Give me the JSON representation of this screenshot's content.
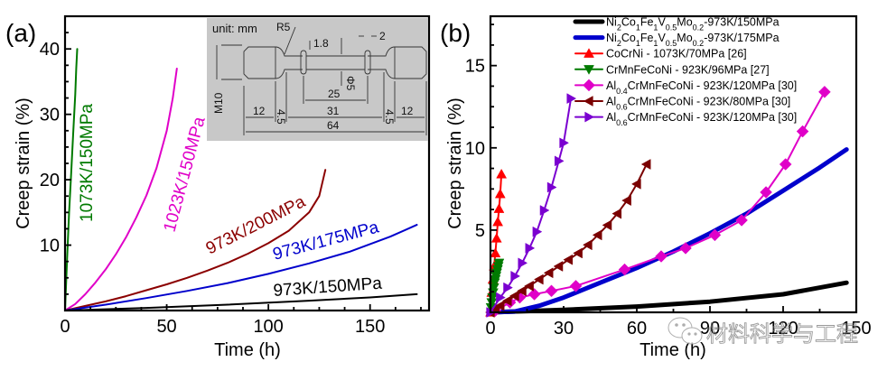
{
  "chart_data": [
    {
      "panel": "(a)",
      "type": "line",
      "title": "",
      "xlabel": "Time (h)",
      "ylabel": "Creep strain (%)",
      "xlim": [
        0,
        179
      ],
      "ylim": [
        0,
        45
      ],
      "xticks": [
        0,
        50,
        100,
        150
      ],
      "yticks": [
        10,
        20,
        30,
        40
      ],
      "grid": false,
      "series": [
        {
          "name": "1073K/150MPa",
          "color": "#007a00",
          "x": [
            0,
            1,
            2,
            3,
            4,
            5,
            5.5,
            6
          ],
          "y": [
            0,
            8,
            15,
            21,
            27,
            33,
            37,
            40
          ]
        },
        {
          "name": "1023K/150MPa",
          "color": "#e000c8",
          "x": [
            0,
            5,
            10,
            15,
            20,
            25,
            30,
            35,
            40,
            45,
            50,
            53,
            55
          ],
          "y": [
            0,
            1.0,
            2.5,
            4.3,
            6.3,
            8.6,
            11.2,
            14.2,
            17.6,
            21.8,
            27.5,
            32.5,
            37
          ]
        },
        {
          "name": "973K/200MPa",
          "color": "#8b0000",
          "x": [
            0,
            10,
            20,
            30,
            40,
            50,
            60,
            70,
            80,
            90,
            100,
            110,
            120,
            125,
            128
          ],
          "y": [
            0,
            0.7,
            1.4,
            2.2,
            3.1,
            4.0,
            5.0,
            6.1,
            7.3,
            8.7,
            10.3,
            12.2,
            15.0,
            17.5,
            21.5
          ]
        },
        {
          "name": "973K/175MPa",
          "color": "#0000cc",
          "x": [
            0,
            20,
            40,
            60,
            80,
            100,
            120,
            140,
            160,
            173
          ],
          "y": [
            0,
            0.9,
            1.9,
            3.0,
            4.2,
            5.6,
            7.2,
            9.0,
            11.3,
            13.1
          ]
        },
        {
          "name": "973K/150MPa",
          "color": "#000000",
          "x": [
            0,
            40,
            80,
            120,
            150,
            173
          ],
          "y": [
            0,
            0.4,
            0.9,
            1.5,
            2.0,
            2.5
          ]
        }
      ],
      "curve_labels": [
        {
          "text": "1073K/150MPa",
          "color": "#007a00"
        },
        {
          "text": "1023K/150MPa",
          "color": "#e000c8"
        },
        {
          "text": "973K/200MPa",
          "color": "#8b0000"
        },
        {
          "text": "973K/175MPa",
          "color": "#0000cc"
        },
        {
          "text": "973K/150MPa",
          "color": "#000000"
        }
      ],
      "inset": {
        "unit_label": "unit: mm",
        "dimensions": {
          "radius": "R5",
          "collar_thickness": "1.8",
          "groove_width": "2",
          "gauge_diameter": "Φ5",
          "thread": "M10",
          "gauge_length": "25",
          "grip_length_left": "12",
          "fillet_left": "4.5",
          "middle_length": "31",
          "fillet_right": "4.5",
          "grip_length_right": "12",
          "total_length": "64"
        }
      }
    },
    {
      "panel": "(b)",
      "type": "line",
      "title": "",
      "xlabel": "Time (h)",
      "ylabel": "Creep strain (%)",
      "xlim": [
        0,
        150
      ],
      "ylim": [
        0,
        18
      ],
      "xticks": [
        0,
        30,
        60,
        90,
        120,
        150
      ],
      "yticks": [
        5,
        10,
        15
      ],
      "grid": false,
      "legend_position": "top-right",
      "series": [
        {
          "name": "Ni2Co1Fe1V0.5Mo0.2-973K/150MPa",
          "legend_parts": [
            [
              "Ni",
              ""
            ],
            [
              "2",
              "sub"
            ],
            [
              "Co",
              ""
            ],
            [
              "1",
              "sub"
            ],
            [
              "Fe",
              ""
            ],
            [
              "1",
              "sub"
            ],
            [
              "V",
              ""
            ],
            [
              "0.5",
              "sub"
            ],
            [
              "Mo",
              ""
            ],
            [
              "0.2",
              "sub"
            ],
            [
              "-973K/150MPa",
              ""
            ]
          ],
          "color": "#000000",
          "marker": "none",
          "x": [
            0,
            30,
            60,
            90,
            120,
            146
          ],
          "y": [
            0,
            0.15,
            0.35,
            0.65,
            1.1,
            1.8
          ]
        },
        {
          "name": "Ni2Co1Fe1V0.5Mo0.2-973K/175MPa",
          "legend_parts": [
            [
              "Ni",
              ""
            ],
            [
              "2",
              "sub"
            ],
            [
              "Co",
              ""
            ],
            [
              "1",
              "sub"
            ],
            [
              "Fe",
              ""
            ],
            [
              "1",
              "sub"
            ],
            [
              "V",
              ""
            ],
            [
              "0.5",
              "sub"
            ],
            [
              "Mo",
              ""
            ],
            [
              "0.2",
              "sub"
            ],
            [
              "-973K/175MPa",
              ""
            ]
          ],
          "color": "#0000cc",
          "marker": "none",
          "x": [
            0,
            10,
            20,
            30,
            45,
            60,
            75,
            90,
            105,
            120,
            135,
            146
          ],
          "y": [
            0,
            0.05,
            0.4,
            0.9,
            1.8,
            2.7,
            3.7,
            4.8,
            6.0,
            7.4,
            8.8,
            9.9
          ]
        },
        {
          "name": "CoCrNi - 1073K/70MPa [26]",
          "legend_parts": [
            [
              "CoCrNi - 1073K/70MPa [26]",
              ""
            ]
          ],
          "color": "#ff0000",
          "marker": "triangle-up",
          "x": [
            0,
            0.5,
            1,
            1.5,
            2,
            2.5,
            3,
            3.5,
            4,
            4.5
          ],
          "y": [
            0,
            1.2,
            2.0,
            2.8,
            3.6,
            4.5,
            5.5,
            6.3,
            7.2,
            8.4
          ]
        },
        {
          "name": "CrMnFeCoNi - 923K/96MPa [27]",
          "legend_parts": [
            [
              "CrMnFeCoNi - 923K/96MPa [27]",
              ""
            ]
          ],
          "color": "#007a00",
          "marker": "triangle-down",
          "x": [
            0.2,
            0.5,
            0.8,
            1.1,
            1.4,
            1.7,
            2.0,
            2.3,
            2.6,
            2.9,
            3.2,
            3.5
          ],
          "y": [
            0.3,
            0.6,
            0.9,
            1.2,
            1.5,
            1.8,
            2.0,
            2.2,
            2.4,
            2.6,
            2.8,
            3.0
          ]
        },
        {
          "name": "Al0.4CrMnFeCoNi - 923K/120MPa [30]",
          "legend_parts": [
            [
              "Al",
              ""
            ],
            [
              "0.4",
              "sub"
            ],
            [
              "CrMnFeCoNi - 923K/120MPa [30]",
              ""
            ]
          ],
          "color": "#e000c8",
          "marker": "diamond",
          "x": [
            2,
            8,
            12,
            18,
            25,
            35,
            55,
            70,
            80,
            92,
            103,
            113,
            121,
            128,
            137
          ],
          "y": [
            0.1,
            0.6,
            0.9,
            1.1,
            1.3,
            1.6,
            2.6,
            3.4,
            3.9,
            4.7,
            5.6,
            7.3,
            9.0,
            11.0,
            13.4
          ]
        },
        {
          "name": "Al0.6CrMnFeCoNi - 923K/80MPa [30]",
          "legend_parts": [
            [
              "Al",
              ""
            ],
            [
              "0.6",
              "sub"
            ],
            [
              "CrMnFeCoNi - 923K/80MPa [30]",
              ""
            ]
          ],
          "color": "#7a0000",
          "marker": "triangle-left",
          "x": [
            0,
            2,
            4,
            7,
            10,
            13,
            16,
            20,
            24,
            28,
            32,
            36,
            40,
            44,
            48,
            52,
            56,
            60,
            64
          ],
          "y": [
            0,
            0.2,
            0.4,
            0.7,
            1.0,
            1.3,
            1.6,
            2.0,
            2.4,
            2.8,
            3.2,
            3.6,
            4.1,
            4.7,
            5.3,
            6.0,
            6.8,
            7.8,
            9.0
          ]
        },
        {
          "name": "Al0.6CrMnFeCoNi - 923K/120MPa [30]",
          "legend_parts": [
            [
              "Al",
              ""
            ],
            [
              "0.6",
              "sub"
            ],
            [
              "CrMnFeCoNi - 923K/120MPa [30]",
              ""
            ]
          ],
          "color": "#7a00d0",
          "marker": "triangle-right",
          "x": [
            0,
            4,
            7,
            10,
            13,
            16,
            19,
            22,
            25,
            28,
            30,
            33
          ],
          "y": [
            0,
            0.9,
            1.5,
            2.2,
            3.0,
            3.9,
            4.9,
            6.2,
            7.6,
            9.2,
            10.3,
            13.0
          ]
        }
      ]
    }
  ],
  "panels": {
    "a_label": "(a)",
    "b_label": "(b)"
  },
  "watermark": {
    "text": "材料科学与工程",
    "icon": "wechat-icon"
  }
}
